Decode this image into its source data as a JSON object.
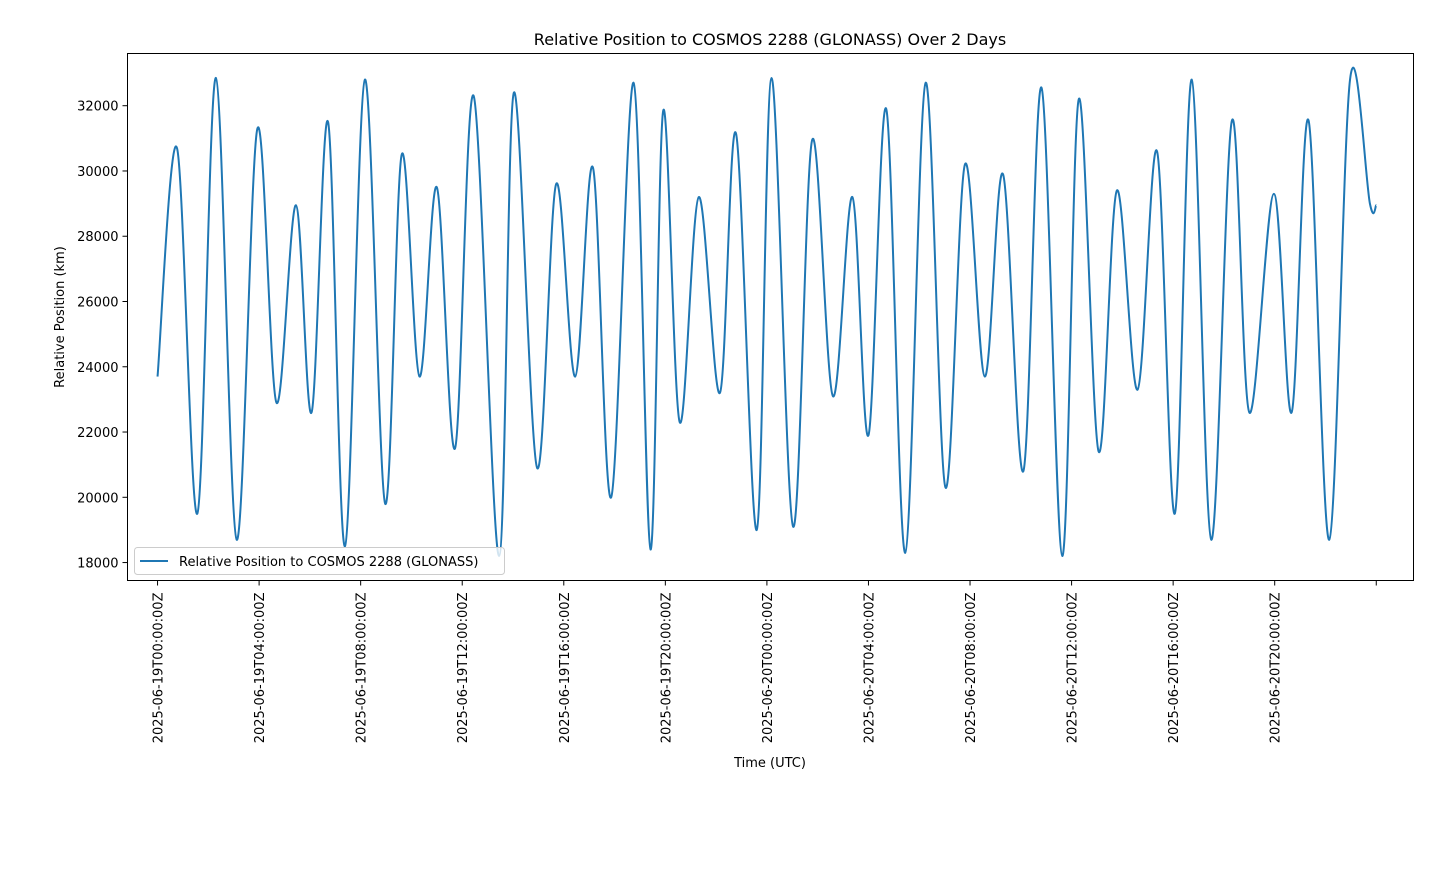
{
  "chart_data": {
    "type": "line",
    "title": "Relative Position to COSMOS 2288 (GLONASS) Over 2 Days",
    "xlabel": "Time (UTC)",
    "ylabel": "Relative Position (km)",
    "xlim": [
      "2025-06-18T22:49:00Z",
      "2025-06-21T01:28:00Z"
    ],
    "ylim": [
      17450,
      33600
    ],
    "x_ticks": [
      "2025-06-19T00:00:00Z",
      "2025-06-19T04:00:00Z",
      "2025-06-19T08:00:00Z",
      "2025-06-19T12:00:00Z",
      "2025-06-19T16:00:00Z",
      "2025-06-19T20:00:00Z",
      "2025-06-20T00:00:00Z",
      "2025-06-20T04:00:00Z",
      "2025-06-20T08:00:00Z",
      "2025-06-20T12:00:00Z",
      "2025-06-20T16:00:00Z",
      "2025-06-20T20:00:00Z",
      "2025-06-21T00:00:00Z"
    ],
    "x_tick_labels": [
      "2025-06-19T00:00:00Z",
      "2025-06-19T04:00:00Z",
      "2025-06-19T08:00:00Z",
      "2025-06-19T12:00:00Z",
      "2025-06-19T16:00:00Z",
      "2025-06-19T20:00:00Z",
      "2025-06-20T00:00:00Z",
      "2025-06-20T04:00:00Z",
      "2025-06-20T08:00:00Z",
      "2025-06-20T12:00:00Z",
      "2025-06-20T16:00:00Z",
      "2025-06-20T20:00:00Z",
      ""
    ],
    "y_ticks": [
      18000,
      20000,
      22000,
      24000,
      26000,
      28000,
      30000,
      32000
    ],
    "grid": false,
    "legend_position": "lower-left",
    "series": [
      {
        "name": "Relative Position to COSMOS 2288 (GLONASS)",
        "color": "#1f77b4",
        "x": [
          "2025-06-19T00:00:00Z",
          "2025-06-19T00:46:00Z",
          "2025-06-19T01:34:00Z",
          "2025-06-19T02:18:00Z",
          "2025-06-19T03:07:00Z",
          "2025-06-19T03:56:00Z",
          "2025-06-19T04:41:00Z",
          "2025-06-19T05:27:00Z",
          "2025-06-19T06:04:00Z",
          "2025-06-19T06:43:00Z",
          "2025-06-19T07:23:00Z",
          "2025-06-19T08:10:00Z",
          "2025-06-19T08:58:00Z",
          "2025-06-19T09:37:00Z",
          "2025-06-19T10:19:00Z",
          "2025-06-19T11:00:00Z",
          "2025-06-19T11:43:00Z",
          "2025-06-19T12:27:00Z",
          "2025-06-19T13:27:00Z",
          "2025-06-19T14:02:00Z",
          "2025-06-19T14:57:00Z",
          "2025-06-19T15:42:00Z",
          "2025-06-19T16:27:00Z",
          "2025-06-19T17:09:00Z",
          "2025-06-19T17:52:00Z",
          "2025-06-19T18:45:00Z",
          "2025-06-19T19:25:00Z",
          "2025-06-19T19:55:00Z",
          "2025-06-19T20:34:00Z",
          "2025-06-19T21:19:00Z",
          "2025-06-19T22:09:00Z",
          "2025-06-19T22:47:00Z",
          "2025-06-19T23:36:00Z",
          "2025-06-20T00:11:00Z",
          "2025-06-20T01:02:00Z",
          "2025-06-20T01:47:00Z",
          "2025-06-20T02:36:00Z",
          "2025-06-20T03:22:00Z",
          "2025-06-20T04:00:00Z",
          "2025-06-20T04:42:00Z",
          "2025-06-20T05:27:00Z",
          "2025-06-20T06:15:00Z",
          "2025-06-20T07:02:00Z",
          "2025-06-20T07:48:00Z",
          "2025-06-20T08:35:00Z",
          "2025-06-20T09:18:00Z",
          "2025-06-20T10:06:00Z",
          "2025-06-20T10:49:00Z",
          "2025-06-20T11:38:00Z",
          "2025-06-20T12:17:00Z",
          "2025-06-20T13:04:00Z",
          "2025-06-20T13:47:00Z",
          "2025-06-20T14:36:00Z",
          "2025-06-20T15:22:00Z",
          "2025-06-20T16:04:00Z",
          "2025-06-20T16:44:00Z",
          "2025-06-20T17:30:00Z",
          "2025-06-20T18:19:00Z",
          "2025-06-20T19:00:00Z",
          "2025-06-20T19:58:00Z",
          "2025-06-20T20:40:00Z",
          "2025-06-20T21:20:00Z",
          "2025-06-20T22:09:00Z",
          "2025-06-20T22:58:00Z",
          "2025-06-20T23:45:00Z",
          "2025-06-21T00:00:00Z"
        ],
        "y": [
          23700,
          30700,
          19500,
          32850,
          18700,
          31300,
          22900,
          28950,
          22600,
          31500,
          18500,
          32800,
          19800,
          30500,
          23700,
          29500,
          21500,
          32300,
          18200,
          32400,
          20900,
          29600,
          23700,
          30100,
          20000,
          32700,
          18400,
          31850,
          22300,
          29200,
          23200,
          31150,
          19000,
          32850,
          19100,
          30950,
          23100,
          29200,
          21900,
          31900,
          18300,
          32700,
          20300,
          30200,
          23700,
          29900,
          20800,
          32550,
          18200,
          32200,
          21400,
          29400,
          23300,
          30600,
          19500,
          32800,
          18700,
          31550,
          22600,
          29300,
          22600,
          31550,
          18700,
          32800,
          29000,
          28950
        ]
      }
    ]
  }
}
